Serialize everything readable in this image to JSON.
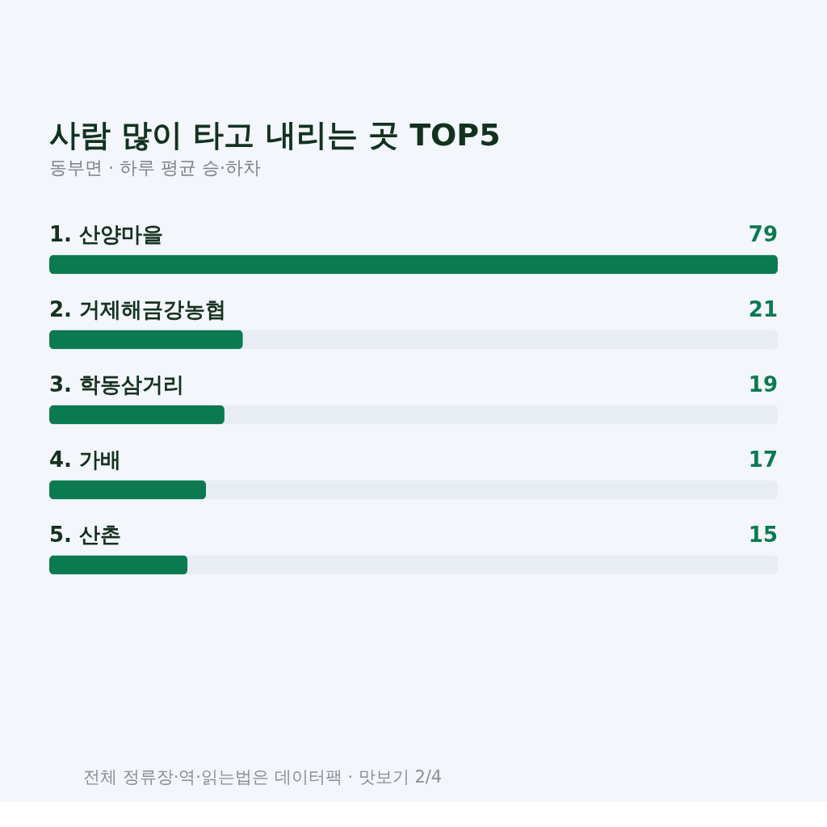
{
  "chart_data": {
    "type": "bar",
    "orientation": "horizontal",
    "title": "사람 많이 타고 내리는 곳 TOP5",
    "subtitle": "동부면 · 하루 평균 승·하차",
    "categories": [
      "1. 산양마을",
      "2. 거제해금강농협",
      "3. 학동삼거리",
      "4. 가배",
      "5. 산촌"
    ],
    "values": [
      79,
      21,
      19,
      17,
      15
    ],
    "color": "#0b7a50",
    "data_labels": true,
    "annotations": [
      "전체 정류장·역·읽는법은 데이터팩 · 맛보기 2/4"
    ]
  }
}
